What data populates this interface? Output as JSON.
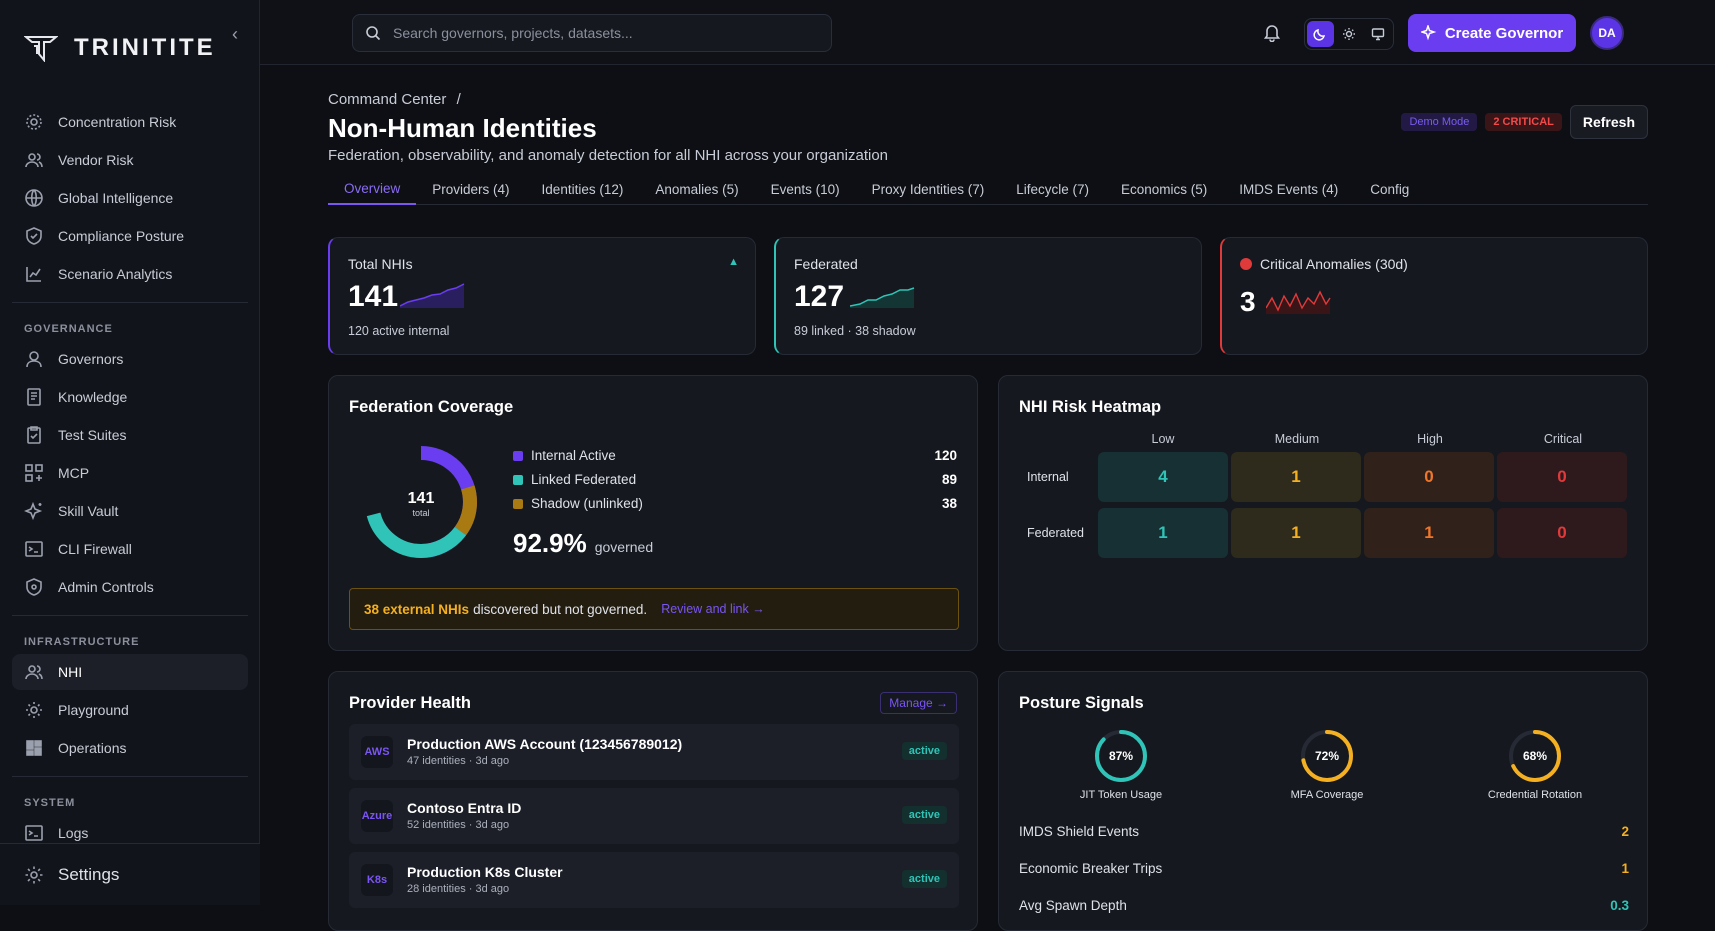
{
  "app": {
    "name": "TRINITITE"
  },
  "sidebar": {
    "top_items": [
      {
        "label": "Concentration Risk"
      },
      {
        "label": "Vendor Risk"
      },
      {
        "label": "Global Intelligence"
      },
      {
        "label": "Compliance Posture"
      },
      {
        "label": "Scenario Analytics"
      }
    ],
    "governance": {
      "heading": "GOVERNANCE",
      "items": [
        {
          "label": "Governors"
        },
        {
          "label": "Knowledge"
        },
        {
          "label": "Test Suites"
        },
        {
          "label": "MCP"
        },
        {
          "label": "Skill Vault"
        },
        {
          "label": "CLI Firewall"
        },
        {
          "label": "Admin Controls"
        }
      ]
    },
    "infrastructure": {
      "heading": "INFRASTRUCTURE",
      "items": [
        {
          "label": "NHI"
        },
        {
          "label": "Playground"
        },
        {
          "label": "Operations"
        }
      ]
    },
    "system": {
      "heading": "SYSTEM",
      "items": [
        {
          "label": "Logs"
        }
      ]
    },
    "settings_label": "Settings"
  },
  "topbar": {
    "search_placeholder": "Search governors, projects, datasets...",
    "create_label": "Create Governor",
    "avatar_initials": "DA"
  },
  "page": {
    "breadcrumb": "Command Center",
    "breadcrumb_sep": "/",
    "title": "Non-Human Identities",
    "subtitle": "Federation, observability, and anomaly detection for all NHI across your organization",
    "demo_badge": "Demo Mode",
    "critical_badge": "2 CRITICAL",
    "refresh_label": "Refresh",
    "tabs": [
      {
        "label": "Overview"
      },
      {
        "label": "Providers (4)"
      },
      {
        "label": "Identities (12)"
      },
      {
        "label": "Anomalies (5)"
      },
      {
        "label": "Events (10)"
      },
      {
        "label": "Proxy Identities (7)"
      },
      {
        "label": "Lifecycle (7)"
      },
      {
        "label": "Economics (5)"
      },
      {
        "label": "IMDS Events (4)"
      },
      {
        "label": "Config"
      }
    ]
  },
  "stats": [
    {
      "label": "Total NHIs",
      "value": "141",
      "sub": "120 active internal",
      "color": "#6a3df0"
    },
    {
      "label": "Federated",
      "value": "127",
      "sub": "89 linked · 38 shadow",
      "color": "#2fc4b7"
    },
    {
      "label": "Critical Anomalies (30d)",
      "value": "3",
      "sub": "",
      "color": "#e03a3a"
    }
  ],
  "federation": {
    "title": "Federation Coverage",
    "center_value": "141",
    "center_label": "total",
    "legend": [
      {
        "label": "Internal Active",
        "value": "120",
        "color": "#6a3df0"
      },
      {
        "label": "Linked Federated",
        "value": "89",
        "color": "#2fc4b7"
      },
      {
        "label": "Shadow (unlinked)",
        "value": "38",
        "color": "#a97a12"
      }
    ],
    "governed_pct": "92.9%",
    "governed_label": "governed",
    "alert_highlight": "38 external NHIs",
    "alert_text": "discovered but not governed.",
    "alert_link": "Review and link →"
  },
  "heatmap": {
    "title": "NHI Risk Heatmap",
    "columns": [
      "Low",
      "Medium",
      "High",
      "Critical"
    ],
    "rows": [
      {
        "label": "Internal",
        "values": [
          "4",
          "1",
          "0",
          "0"
        ]
      },
      {
        "label": "Federated",
        "values": [
          "1",
          "1",
          "1",
          "0"
        ]
      }
    ]
  },
  "providers": {
    "title": "Provider Health",
    "manage_label": "Manage →",
    "items": [
      {
        "icon": "AWS",
        "name": "Production AWS Account (123456789012)",
        "meta": "47 identities · 3d ago",
        "status": "active"
      },
      {
        "icon": "Azure",
        "name": "Contoso Entra ID",
        "meta": "52 identities · 3d ago",
        "status": "active"
      },
      {
        "icon": "K8s",
        "name": "Production K8s Cluster",
        "meta": "28 identities · 3d ago",
        "status": "active"
      }
    ]
  },
  "posture": {
    "title": "Posture Signals",
    "rings": [
      {
        "pct": "87%",
        "fraction": 0.87,
        "label": "JIT Token Usage",
        "color": "#2fc4b7"
      },
      {
        "pct": "72%",
        "fraction": 0.72,
        "label": "MFA Coverage",
        "color": "#f5b021"
      },
      {
        "pct": "68%",
        "fraction": 0.68,
        "label": "Credential Rotation",
        "color": "#f5b021"
      }
    ],
    "signals": [
      {
        "label": "IMDS Shield Events",
        "value": "2"
      },
      {
        "label": "Economic Breaker Trips",
        "value": "1"
      },
      {
        "label": "Avg Spawn Depth",
        "value": "0.3"
      }
    ]
  }
}
